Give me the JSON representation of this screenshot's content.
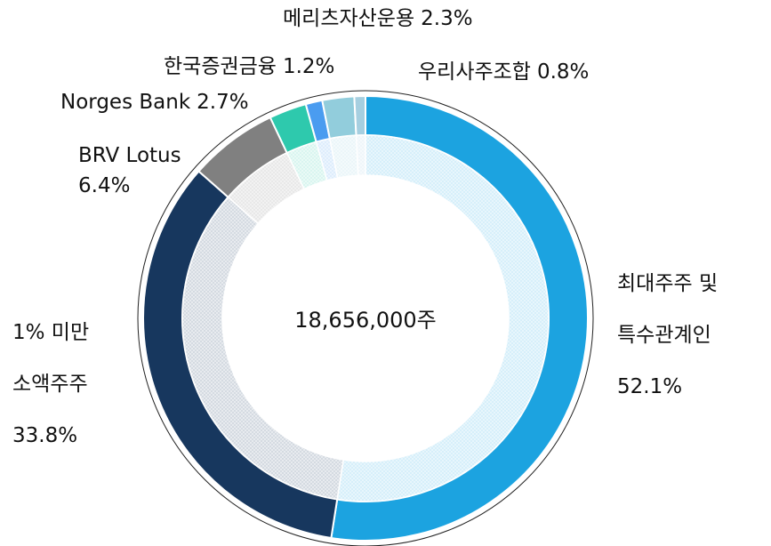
{
  "chart_data": {
    "type": "donut",
    "categories": [
      "최대주주 및 특수관계인",
      "1% 미만 소액주주",
      "BRV Lotus",
      "Norges Bank",
      "한국증권금융",
      "메리츠자산운용",
      "우리사주조합"
    ],
    "values": [
      52.1,
      33.8,
      6.4,
      2.7,
      1.2,
      2.3,
      0.8
    ],
    "value_labels": [
      "52.1%",
      "33.8%",
      "6.4%",
      "2.7%",
      "1.2%",
      "2.3%",
      "0.8%"
    ],
    "colors": [
      "#1ca3e0",
      "#17375e",
      "#808080",
      "#2ec9ad",
      "#4a9cf0",
      "#92cddc",
      "#a6cfe0"
    ],
    "center_label": "18,656,000주"
  }
}
